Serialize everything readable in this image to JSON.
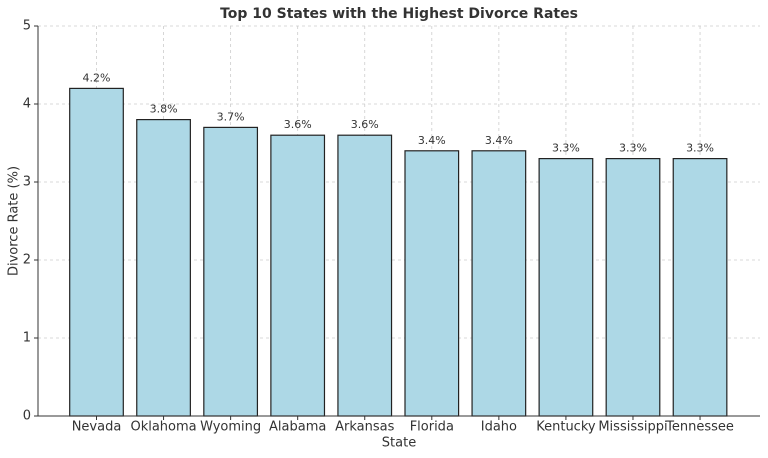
{
  "chart_data": {
    "type": "bar",
    "title": "Top 10 States with the Highest Divorce Rates",
    "x_label": "State",
    "y_label": "Divorce Rate (%)",
    "categories": [
      "Nevada",
      "Oklahoma",
      "Wyoming",
      "Alabama",
      "Arkansas",
      "Florida",
      "Idaho",
      "Kentucky",
      "Mississippi",
      "Tennessee"
    ],
    "values": [
      4.2,
      3.8,
      3.7,
      3.6,
      3.6,
      3.4,
      3.4,
      3.3,
      3.3,
      3.3
    ],
    "value_labels": [
      "4.2%",
      "3.8%",
      "3.7%",
      "3.6%",
      "3.6%",
      "3.4%",
      "3.4%",
      "3.3%",
      "3.3%",
      "3.3%"
    ],
    "color": "#add8e6",
    "ylim": [
      0,
      5
    ],
    "yticks": [
      0,
      1,
      2,
      3,
      4,
      5
    ],
    "grid": true
  }
}
